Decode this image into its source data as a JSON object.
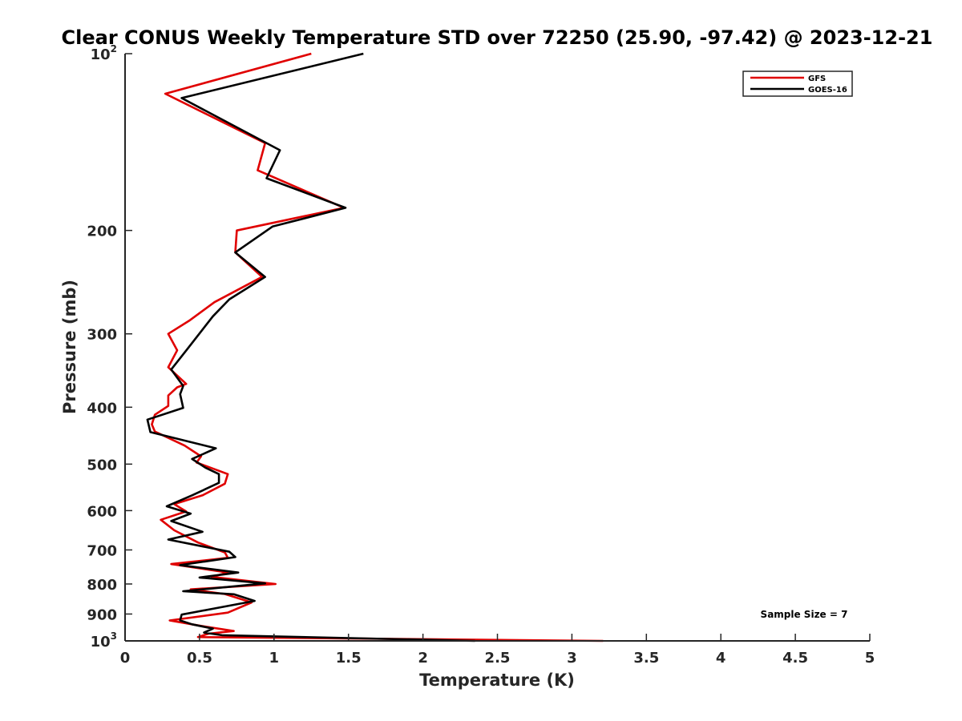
{
  "chart_data": {
    "type": "line",
    "title": "Clear CONUS Weekly Temperature STD over 72250 (25.90, -97.42) @ 2023-12-21",
    "xlabel": "Temperature (K)",
    "ylabel": "Pressure (mb)",
    "xlim": [
      0,
      5
    ],
    "ylim": [
      100,
      1000
    ],
    "y_scale": "log",
    "y_reversed": true,
    "x_ticks": [
      "0",
      "0.5",
      "1",
      "1.5",
      "2",
      "2.5",
      "3",
      "3.5",
      "4",
      "4.5",
      "5"
    ],
    "y_ticks": [
      {
        "value": 100,
        "base": "10",
        "exp": "2"
      },
      {
        "value": 200,
        "label": "200"
      },
      {
        "value": 300,
        "label": "300"
      },
      {
        "value": 400,
        "label": "400"
      },
      {
        "value": 500,
        "label": "500"
      },
      {
        "value": 600,
        "label": "600"
      },
      {
        "value": 700,
        "label": "700"
      },
      {
        "value": 800,
        "label": "800"
      },
      {
        "value": 900,
        "label": "900"
      },
      {
        "value": 1000,
        "base": "10",
        "exp": "3"
      }
    ],
    "grid": false,
    "legend_position": "top-right",
    "annotation": "Sample Size = 7",
    "series": [
      {
        "name": "GFS",
        "color": "#e00000",
        "points": [
          [
            1.25,
            100
          ],
          [
            0.27,
            117
          ],
          [
            0.94,
            142
          ],
          [
            0.89,
            158
          ],
          [
            1.47,
            183
          ],
          [
            0.75,
            200
          ],
          [
            0.74,
            218
          ],
          [
            0.92,
            240
          ],
          [
            0.6,
            265
          ],
          [
            0.43,
            285
          ],
          [
            0.29,
            300
          ],
          [
            0.35,
            320
          ],
          [
            0.29,
            342
          ],
          [
            0.41,
            365
          ],
          [
            0.35,
            370
          ],
          [
            0.29,
            382
          ],
          [
            0.29,
            398
          ],
          [
            0.2,
            412
          ],
          [
            0.18,
            428
          ],
          [
            0.2,
            440
          ],
          [
            0.4,
            465
          ],
          [
            0.51,
            485
          ],
          [
            0.48,
            497
          ],
          [
            0.69,
            520
          ],
          [
            0.67,
            540
          ],
          [
            0.52,
            565
          ],
          [
            0.33,
            585
          ],
          [
            0.41,
            602
          ],
          [
            0.24,
            622
          ],
          [
            0.33,
            648
          ],
          [
            0.49,
            680
          ],
          [
            0.67,
            707
          ],
          [
            0.69,
            722
          ],
          [
            0.31,
            740
          ],
          [
            0.69,
            765
          ],
          [
            0.58,
            778
          ],
          [
            1.01,
            800
          ],
          [
            0.44,
            817
          ],
          [
            0.67,
            832
          ],
          [
            0.85,
            860
          ],
          [
            0.69,
            895
          ],
          [
            0.3,
            923
          ],
          [
            0.51,
            943
          ],
          [
            0.73,
            962
          ],
          [
            0.56,
            972
          ],
          [
            0.49,
            985
          ],
          [
            3.21,
            1000
          ]
        ]
      },
      {
        "name": "GOES-16",
        "color": "#000000",
        "points": [
          [
            1.6,
            100
          ],
          [
            0.38,
            119
          ],
          [
            1.04,
            146
          ],
          [
            0.95,
            163
          ],
          [
            1.48,
            183
          ],
          [
            0.99,
            197
          ],
          [
            0.74,
            218
          ],
          [
            0.94,
            240
          ],
          [
            0.7,
            262
          ],
          [
            0.59,
            280
          ],
          [
            0.42,
            318
          ],
          [
            0.31,
            345
          ],
          [
            0.39,
            368
          ],
          [
            0.37,
            380
          ],
          [
            0.39,
            401
          ],
          [
            0.15,
            420
          ],
          [
            0.17,
            441
          ],
          [
            0.61,
            470
          ],
          [
            0.45,
            490
          ],
          [
            0.54,
            507
          ],
          [
            0.63,
            520
          ],
          [
            0.63,
            538
          ],
          [
            0.45,
            565
          ],
          [
            0.28,
            590
          ],
          [
            0.44,
            607
          ],
          [
            0.31,
            625
          ],
          [
            0.52,
            652
          ],
          [
            0.29,
            672
          ],
          [
            0.7,
            705
          ],
          [
            0.74,
            720
          ],
          [
            0.37,
            743
          ],
          [
            0.76,
            765
          ],
          [
            0.5,
            780
          ],
          [
            0.94,
            798
          ],
          [
            0.39,
            823
          ],
          [
            0.73,
            833
          ],
          [
            0.87,
            855
          ],
          [
            0.38,
            902
          ],
          [
            0.37,
            923
          ],
          [
            0.45,
            937
          ],
          [
            0.59,
            953
          ],
          [
            0.53,
            968
          ],
          [
            0.65,
            978
          ],
          [
            2.35,
            1000
          ]
        ]
      }
    ]
  }
}
